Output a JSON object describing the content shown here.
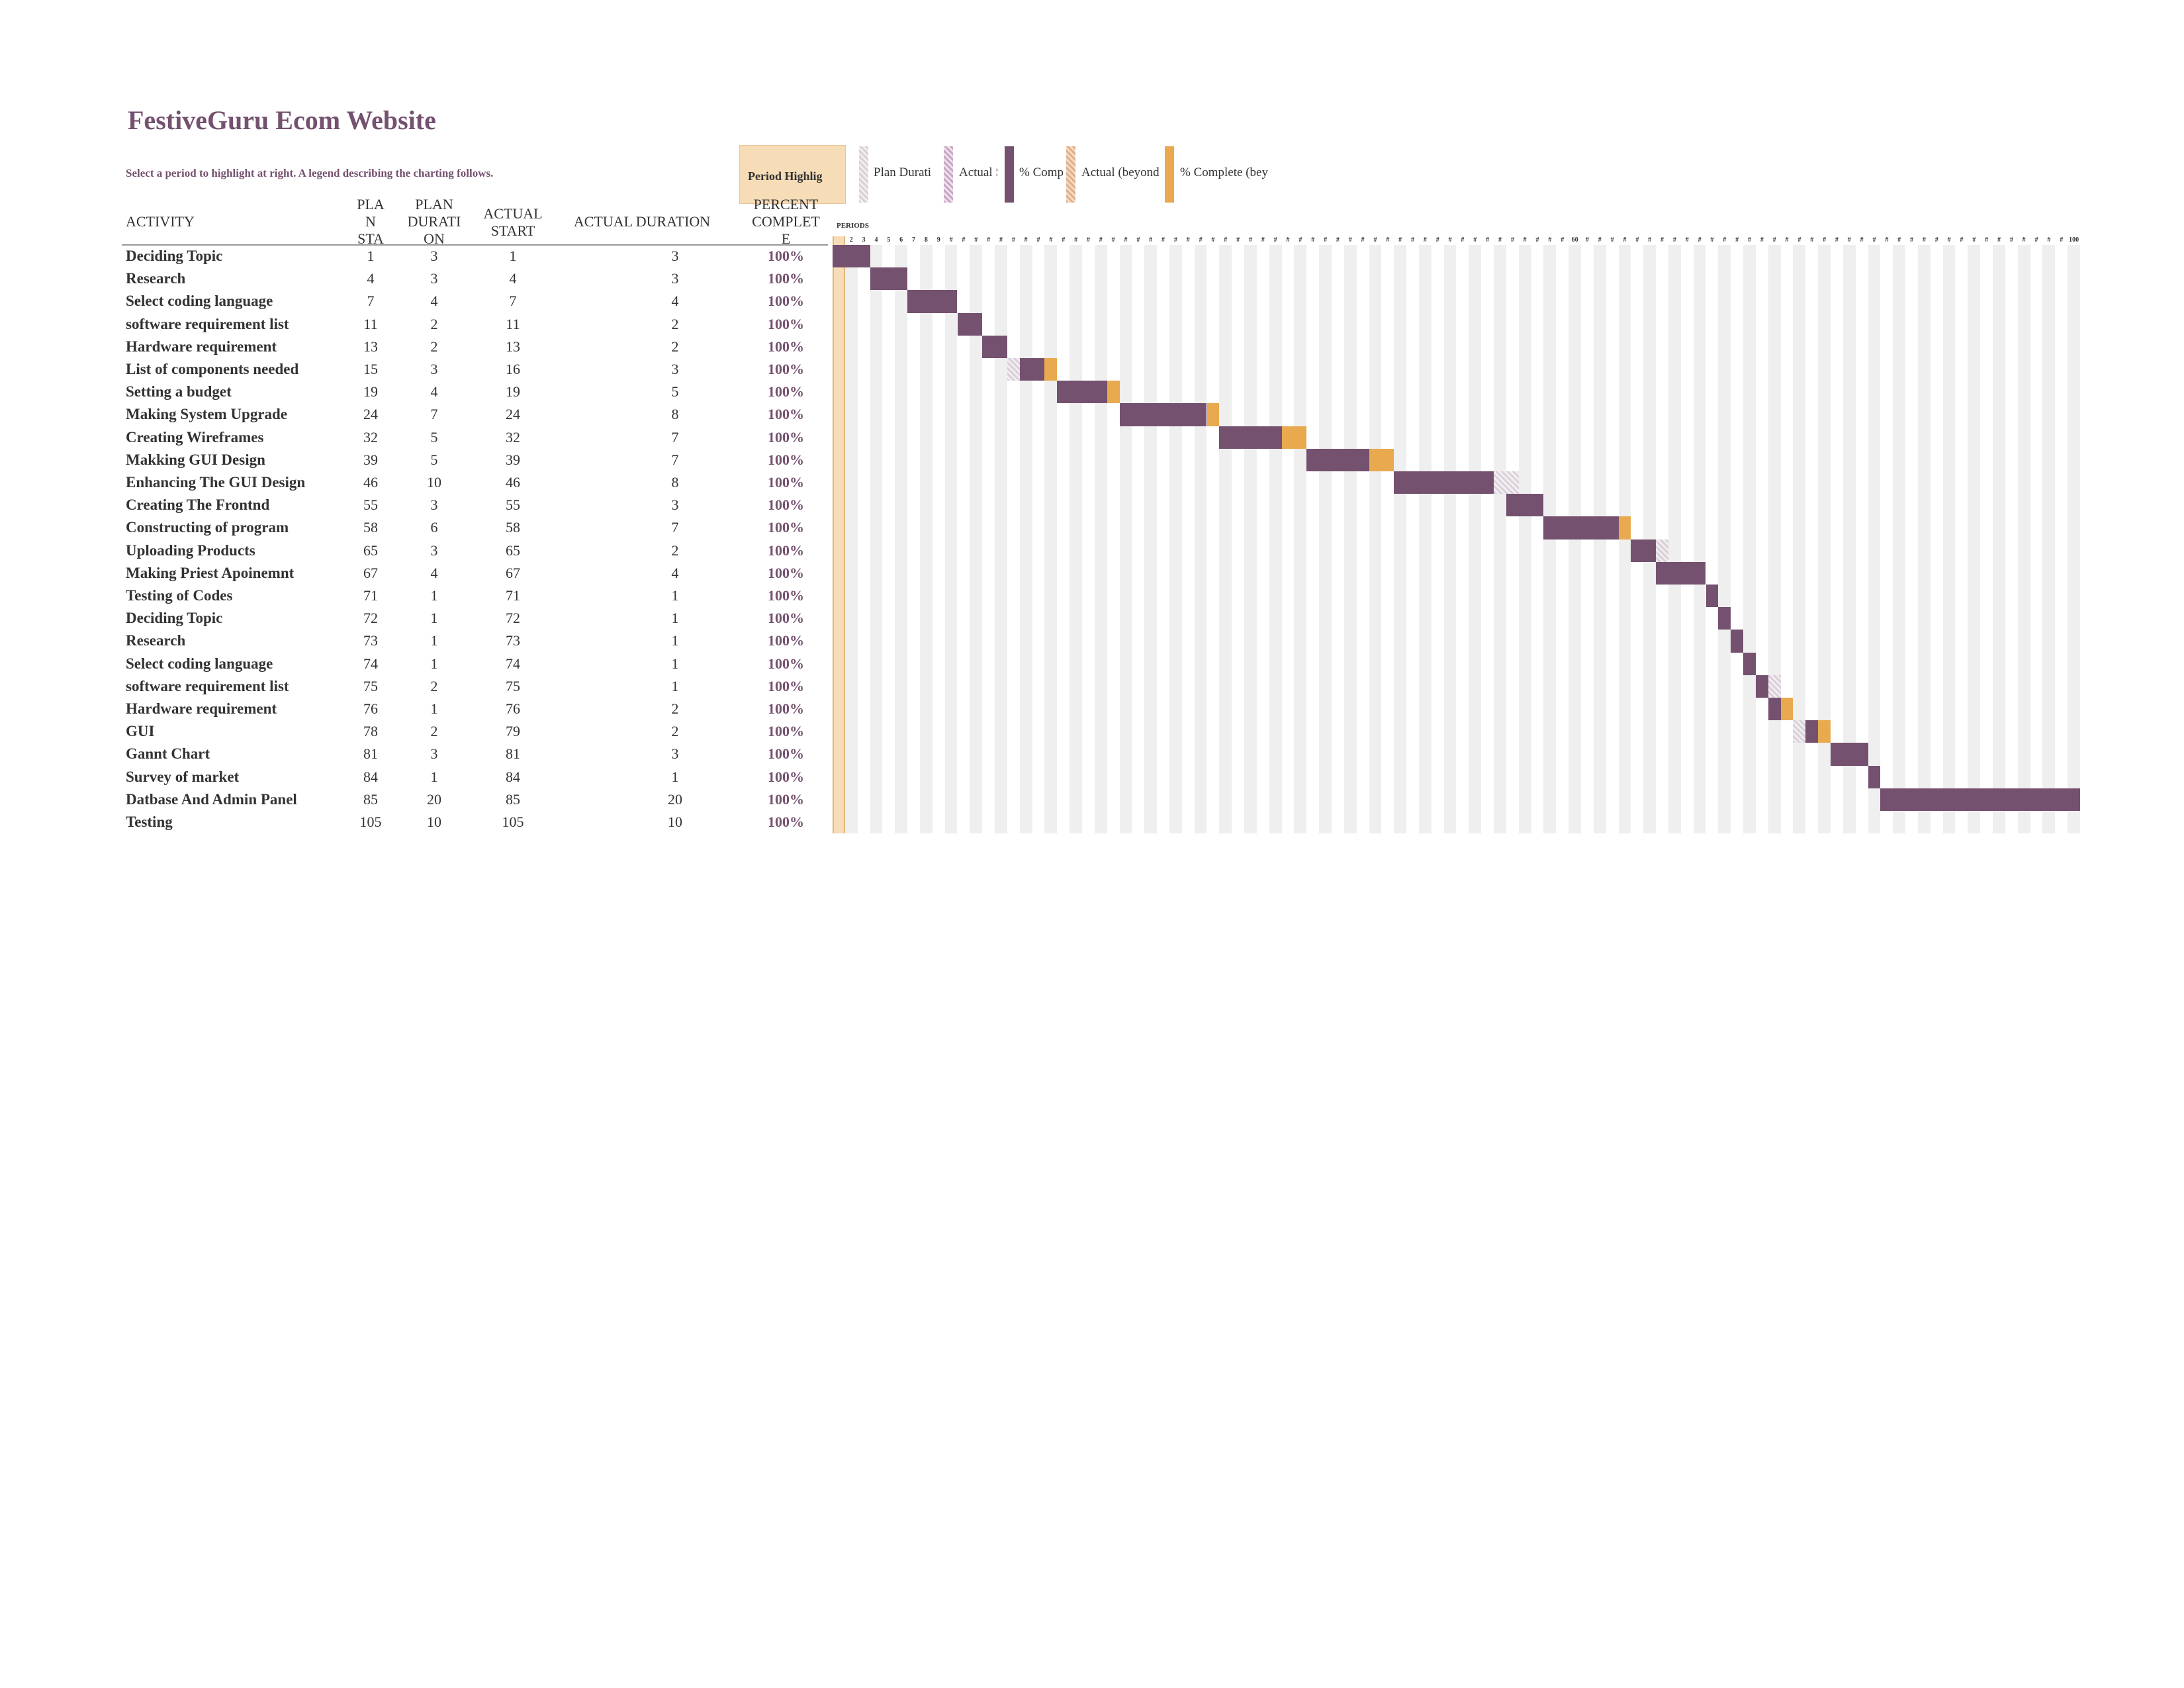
{
  "title": "FestiveGuru Ecom Website",
  "subtitle": "Select a period to highlight at right.  A legend describing the charting follows.",
  "period_highlight": {
    "label": "Period Highlig",
    "value": 1
  },
  "legend": [
    {
      "label": "Plan Durati",
      "style": "plan"
    },
    {
      "label": "Actual S",
      "style": "actual"
    },
    {
      "label": "% Comp",
      "style": "complete"
    },
    {
      "label": "Actual (beyond",
      "style": "actual-beyond"
    },
    {
      "label": "% Complete (bey",
      "style": "complete-beyond"
    }
  ],
  "columns": {
    "activity": "ACTIVITY",
    "plan_start": "PLA\nN\nSTA",
    "plan_duration": "PLAN\nDURATI\nON",
    "actual_start": "ACTUAL\nSTART",
    "actual_duration": "ACTUAL DURATION",
    "percent_complete": "PERCENT\nCOMPLET\nE"
  },
  "periods_label": "PERIODS",
  "period_count": 100,
  "period_tick_labels": [
    "1",
    "2",
    "3",
    "4",
    "5",
    "6",
    "7",
    "8",
    "9",
    "#",
    "#",
    "#",
    "#",
    "#",
    "#",
    "#",
    "#",
    "#",
    "#",
    "#",
    "#",
    "#",
    "#",
    "#",
    "#",
    "#",
    "#",
    "#",
    "#",
    "#",
    "#",
    "#",
    "#",
    "#",
    "#",
    "#",
    "#",
    "#",
    "#",
    "#",
    "#",
    "#",
    "#",
    "#",
    "#",
    "#",
    "#",
    "#",
    "#",
    "#",
    "#",
    "#",
    "#",
    "#",
    "#",
    "#",
    "#",
    "#",
    "#",
    "60",
    "#",
    "#",
    "#",
    "#",
    "#",
    "#",
    "#",
    "#",
    "#",
    "#",
    "#",
    "#",
    "#",
    "#",
    "#",
    "#",
    "#",
    "#",
    "#",
    "#",
    "#",
    "#",
    "#",
    "#",
    "#",
    "#",
    "#",
    "#",
    "#",
    "#",
    "#",
    "#",
    "#",
    "#",
    "#",
    "#",
    "#",
    "#",
    "#",
    "100"
  ],
  "colors": {
    "title": "#74516f",
    "complete_bar": "#74516f",
    "beyond_bar": "#e8a94f",
    "highlight": "#f6dcb7",
    "stripe": "#efefef"
  },
  "rows": [
    {
      "activity": "Deciding Topic",
      "plan_start": 1,
      "plan_duration": 3,
      "actual_start": 1,
      "actual_duration": 3,
      "percent": "100%"
    },
    {
      "activity": "Research",
      "plan_start": 4,
      "plan_duration": 3,
      "actual_start": 4,
      "actual_duration": 3,
      "percent": "100%"
    },
    {
      "activity": "Select coding language",
      "plan_start": 7,
      "plan_duration": 4,
      "actual_start": 7,
      "actual_duration": 4,
      "percent": "100%"
    },
    {
      "activity": "software requirement list",
      "plan_start": 11,
      "plan_duration": 2,
      "actual_start": 11,
      "actual_duration": 2,
      "percent": "100%"
    },
    {
      "activity": "Hardware requirement",
      "plan_start": 13,
      "plan_duration": 2,
      "actual_start": 13,
      "actual_duration": 2,
      "percent": "100%"
    },
    {
      "activity": "List of components needed",
      "plan_start": 15,
      "plan_duration": 3,
      "actual_start": 16,
      "actual_duration": 3,
      "percent": "100%"
    },
    {
      "activity": "Setting a budget",
      "plan_start": 19,
      "plan_duration": 4,
      "actual_start": 19,
      "actual_duration": 5,
      "percent": "100%"
    },
    {
      "activity": "Making System Upgrade",
      "plan_start": 24,
      "plan_duration": 7,
      "actual_start": 24,
      "actual_duration": 8,
      "percent": "100%"
    },
    {
      "activity": "Creating Wireframes",
      "plan_start": 32,
      "plan_duration": 5,
      "actual_start": 32,
      "actual_duration": 7,
      "percent": "100%"
    },
    {
      "activity": "Makking GUI Design",
      "plan_start": 39,
      "plan_duration": 5,
      "actual_start": 39,
      "actual_duration": 7,
      "percent": "100%"
    },
    {
      "activity": "Enhancing The GUI Design",
      "plan_start": 46,
      "plan_duration": 10,
      "actual_start": 46,
      "actual_duration": 8,
      "percent": "100%"
    },
    {
      "activity": "Creating The Frontnd",
      "plan_start": 55,
      "plan_duration": 3,
      "actual_start": 55,
      "actual_duration": 3,
      "percent": "100%"
    },
    {
      "activity": "Constructing of program",
      "plan_start": 58,
      "plan_duration": 6,
      "actual_start": 58,
      "actual_duration": 7,
      "percent": "100%"
    },
    {
      "activity": "Uploading Products",
      "plan_start": 65,
      "plan_duration": 3,
      "actual_start": 65,
      "actual_duration": 2,
      "percent": "100%"
    },
    {
      "activity": "Making Priest Apoinemnt",
      "plan_start": 67,
      "plan_duration": 4,
      "actual_start": 67,
      "actual_duration": 4,
      "percent": "100%"
    },
    {
      "activity": "Testing of Codes",
      "plan_start": 71,
      "plan_duration": 1,
      "actual_start": 71,
      "actual_duration": 1,
      "percent": "100%"
    },
    {
      "activity": "Deciding Topic",
      "plan_start": 72,
      "plan_duration": 1,
      "actual_start": 72,
      "actual_duration": 1,
      "percent": "100%"
    },
    {
      "activity": "Research",
      "plan_start": 73,
      "plan_duration": 1,
      "actual_start": 73,
      "actual_duration": 1,
      "percent": "100%"
    },
    {
      "activity": "Select coding language",
      "plan_start": 74,
      "plan_duration": 1,
      "actual_start": 74,
      "actual_duration": 1,
      "percent": "100%"
    },
    {
      "activity": "software requirement list",
      "plan_start": 75,
      "plan_duration": 2,
      "actual_start": 75,
      "actual_duration": 1,
      "percent": "100%"
    },
    {
      "activity": "Hardware requirement",
      "plan_start": 76,
      "plan_duration": 1,
      "actual_start": 76,
      "actual_duration": 2,
      "percent": "100%"
    },
    {
      "activity": "GUI",
      "plan_start": 78,
      "plan_duration": 2,
      "actual_start": 79,
      "actual_duration": 2,
      "percent": "100%"
    },
    {
      "activity": "Gannt Chart",
      "plan_start": 81,
      "plan_duration": 3,
      "actual_start": 81,
      "actual_duration": 3,
      "percent": "100%"
    },
    {
      "activity": "Survey of market",
      "plan_start": 84,
      "plan_duration": 1,
      "actual_start": 84,
      "actual_duration": 1,
      "percent": "100%"
    },
    {
      "activity": "Datbase And Admin Panel",
      "plan_start": 85,
      "plan_duration": 20,
      "actual_start": 85,
      "actual_duration": 20,
      "percent": "100%"
    },
    {
      "activity": "Testing",
      "plan_start": 105,
      "plan_duration": 10,
      "actual_start": 105,
      "actual_duration": 10,
      "percent": "100%"
    }
  ]
}
